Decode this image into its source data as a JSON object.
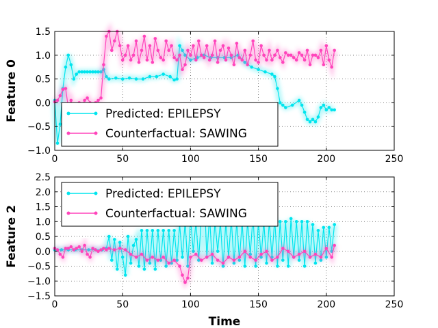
{
  "chart_data": [
    {
      "type": "line",
      "ylabel": "Feature 0",
      "xlabel": "",
      "xlim": [
        0,
        250
      ],
      "ylim": [
        -1.0,
        1.5
      ],
      "xticks": [
        "0",
        "50",
        "100",
        "150",
        "200",
        "250"
      ],
      "yticks": [
        "−1.0",
        "−0.5",
        "0.0",
        "0.5",
        "1.0",
        "1.5"
      ],
      "grid": true,
      "legend": "lower-left",
      "series": [
        {
          "name": "Predicted: EPILEPSY",
          "color": "#00e5ee",
          "x": [
            0,
            2,
            4,
            6,
            8,
            10,
            12,
            14,
            16,
            18,
            20,
            22,
            24,
            26,
            28,
            30,
            32,
            34,
            36,
            38,
            40,
            45,
            50,
            55,
            60,
            65,
            70,
            75,
            80,
            85,
            88,
            90,
            92,
            94,
            96,
            100,
            105,
            110,
            115,
            120,
            125,
            130,
            135,
            140,
            145,
            150,
            155,
            160,
            162,
            164,
            166,
            168,
            170,
            175,
            180,
            182,
            184,
            186,
            188,
            190,
            192,
            194,
            196,
            198,
            200,
            202,
            204,
            206
          ],
          "y": [
            0.05,
            -0.85,
            -0.45,
            0.3,
            0.75,
            1.0,
            0.8,
            0.5,
            0.6,
            0.65,
            0.65,
            0.65,
            0.65,
            0.65,
            0.65,
            0.65,
            0.65,
            0.65,
            0.7,
            0.55,
            0.5,
            0.52,
            0.5,
            0.52,
            0.5,
            0.5,
            0.55,
            0.55,
            0.6,
            0.55,
            0.48,
            0.5,
            1.2,
            1.1,
            1.0,
            0.9,
            0.95,
            1.0,
            0.95,
            0.95,
            0.95,
            0.95,
            1.0,
            0.85,
            0.75,
            0.7,
            0.65,
            0.6,
            0.55,
            0.3,
            0.0,
            -0.05,
            -0.1,
            -0.05,
            0.05,
            -0.05,
            -0.2,
            -0.35,
            -0.4,
            -0.35,
            -0.4,
            -0.3,
            -0.1,
            -0.05,
            -0.15,
            -0.1,
            -0.15,
            -0.15
          ]
        },
        {
          "name": "Counterfactual: SAWING",
          "color": "#ff44bb",
          "x": [
            0,
            2,
            4,
            6,
            8,
            10,
            12,
            14,
            16,
            18,
            20,
            22,
            24,
            26,
            28,
            30,
            32,
            34,
            36,
            38,
            40,
            42,
            44,
            46,
            48,
            50,
            52,
            54,
            56,
            58,
            60,
            62,
            64,
            66,
            68,
            70,
            72,
            74,
            76,
            78,
            80,
            82,
            84,
            86,
            88,
            90,
            92,
            94,
            96,
            98,
            100,
            102,
            104,
            106,
            108,
            110,
            112,
            114,
            116,
            118,
            120,
            122,
            124,
            126,
            128,
            130,
            132,
            134,
            136,
            138,
            140,
            142,
            144,
            146,
            148,
            150,
            152,
            154,
            156,
            158,
            160,
            162,
            164,
            166,
            168,
            170,
            172,
            174,
            176,
            178,
            180,
            182,
            184,
            186,
            188,
            190,
            192,
            194,
            196,
            198,
            200,
            202,
            204,
            206
          ],
          "y": [
            0.02,
            0.05,
            0.15,
            0.28,
            0.3,
            -0.1,
            0.05,
            -0.15,
            -0.05,
            0.0,
            -0.1,
            0.05,
            0.1,
            0.0,
            -0.1,
            0.0,
            0.05,
            0.1,
            0.8,
            1.4,
            1.5,
            1.1,
            1.3,
            1.5,
            1.2,
            0.9,
            1.0,
            1.2,
            0.9,
            1.0,
            1.3,
            0.85,
            1.1,
            1.4,
            0.9,
            1.2,
            0.85,
            1.35,
            1.1,
            0.95,
            0.9,
            1.3,
            1.1,
            1.2,
            0.95,
            0.9,
            1.0,
            0.7,
            0.8,
            1.1,
            1.0,
            1.2,
            0.9,
            1.3,
            1.0,
            0.95,
            1.2,
            0.9,
            1.0,
            1.3,
            0.85,
            1.1,
            1.2,
            0.9,
            1.15,
            1.0,
            0.8,
            1.25,
            0.95,
            0.9,
            1.1,
            0.8,
            1.0,
            1.3,
            0.9,
            0.85,
            1.2,
            1.0,
            0.9,
            1.1,
            0.9,
            1.0,
            1.1,
            0.95,
            0.85,
            1.05,
            1.0,
            1.0,
            0.95,
            0.9,
            1.05,
            1.0,
            0.9,
            1.1,
            0.8,
            1.0,
            1.0,
            0.95,
            1.1,
            0.8,
            1.2,
            0.9,
            0.75,
            1.1
          ]
        }
      ]
    },
    {
      "type": "line",
      "ylabel": "Feature 2",
      "xlabel": "Time",
      "xlim": [
        0,
        250
      ],
      "ylim": [
        -1.5,
        2.5
      ],
      "xticks": [
        "0",
        "50",
        "100",
        "150",
        "200",
        "250"
      ],
      "yticks": [
        "−1.5",
        "−1.0",
        "−0.5",
        "0.0",
        "0.5",
        "1.0",
        "1.5",
        "2.0",
        "2.5"
      ],
      "grid": true,
      "legend": "upper-left",
      "series": [
        {
          "name": "Predicted: EPILEPSY",
          "color": "#00e5ee",
          "x": [
            0,
            5,
            10,
            15,
            20,
            25,
            30,
            35,
            38,
            40,
            42,
            44,
            46,
            48,
            50,
            52,
            54,
            56,
            58,
            60,
            62,
            64,
            66,
            68,
            70,
            72,
            74,
            76,
            78,
            80,
            82,
            84,
            86,
            88,
            90,
            92,
            94,
            96,
            98,
            100,
            102,
            104,
            106,
            108,
            110,
            112,
            114,
            116,
            118,
            120,
            122,
            124,
            126,
            128,
            130,
            132,
            134,
            136,
            138,
            140,
            142,
            144,
            146,
            148,
            150,
            152,
            154,
            156,
            158,
            160,
            162,
            164,
            166,
            168,
            170,
            172,
            174,
            176,
            178,
            180,
            182,
            184,
            186,
            188,
            190,
            192,
            194,
            196,
            198,
            200,
            202,
            204,
            206
          ],
          "y": [
            0.05,
            0.05,
            0.05,
            0.05,
            0.05,
            0.05,
            0.05,
            0.05,
            0.1,
            0.5,
            -0.3,
            0.4,
            -0.6,
            0.3,
            -0.2,
            -0.8,
            0.5,
            -0.4,
            0.2,
            0.4,
            -0.5,
            0.7,
            -0.6,
            0.7,
            -0.4,
            0.7,
            -0.6,
            0.7,
            -0.3,
            0.7,
            -0.5,
            0.7,
            -0.4,
            0.7,
            -0.3,
            0.9,
            -0.2,
            1.0,
            -0.5,
            1.1,
            0.0,
            1.0,
            -0.3,
            1.2,
            2.1,
            -0.2,
            1.2,
            -0.4,
            1.0,
            0.0,
            1.0,
            -0.5,
            1.0,
            -0.2,
            1.1,
            -0.4,
            1.0,
            -0.3,
            1.0,
            -0.5,
            1.0,
            -0.1,
            1.2,
            -0.5,
            1.0,
            -0.2,
            1.0,
            -0.4,
            1.0,
            -0.2,
            1.1,
            -0.5,
            1.0,
            -0.3,
            1.0,
            -0.5,
            1.1,
            -0.2,
            1.0,
            -0.3,
            1.0,
            -0.5,
            1.0,
            -0.2,
            0.9,
            -0.4,
            0.7,
            -0.3,
            0.8,
            -0.2,
            0.8,
            0.0,
            0.9
          ]
        },
        {
          "name": "Counterfactual: SAWING",
          "color": "#ff44bb",
          "x": [
            0,
            2,
            4,
            6,
            8,
            10,
            12,
            14,
            16,
            18,
            20,
            22,
            24,
            26,
            28,
            30,
            32,
            34,
            36,
            38,
            40,
            44,
            48,
            52,
            56,
            60,
            64,
            68,
            72,
            76,
            80,
            84,
            88,
            92,
            94,
            96,
            98,
            100,
            104,
            108,
            112,
            116,
            120,
            124,
            128,
            132,
            136,
            140,
            144,
            148,
            152,
            156,
            160,
            164,
            168,
            172,
            176,
            180,
            184,
            188,
            192,
            196,
            200,
            204,
            206
          ],
          "y": [
            0.1,
            0.05,
            -0.1,
            -0.2,
            0.1,
            0.1,
            0.15,
            0.05,
            0.1,
            0.15,
            0.0,
            0.2,
            -0.1,
            -0.2,
            0.1,
            0.05,
            0.0,
            0.05,
            0.1,
            0.05,
            0.1,
            0.05,
            0.1,
            0.05,
            -0.1,
            -0.2,
            -0.1,
            -0.3,
            -0.2,
            -0.3,
            -0.2,
            -0.4,
            -0.3,
            -0.5,
            -0.8,
            -1.05,
            -0.9,
            -0.2,
            -0.1,
            -0.3,
            -0.2,
            -0.1,
            -0.3,
            -0.4,
            -0.2,
            -0.3,
            -0.2,
            0.0,
            -0.2,
            -0.3,
            -0.1,
            0.0,
            -0.3,
            -0.2,
            0.1,
            0.0,
            -0.2,
            -0.1,
            0.0,
            -0.2,
            -0.1,
            -0.2,
            0.1,
            -0.2,
            0.2
          ]
        }
      ]
    }
  ]
}
